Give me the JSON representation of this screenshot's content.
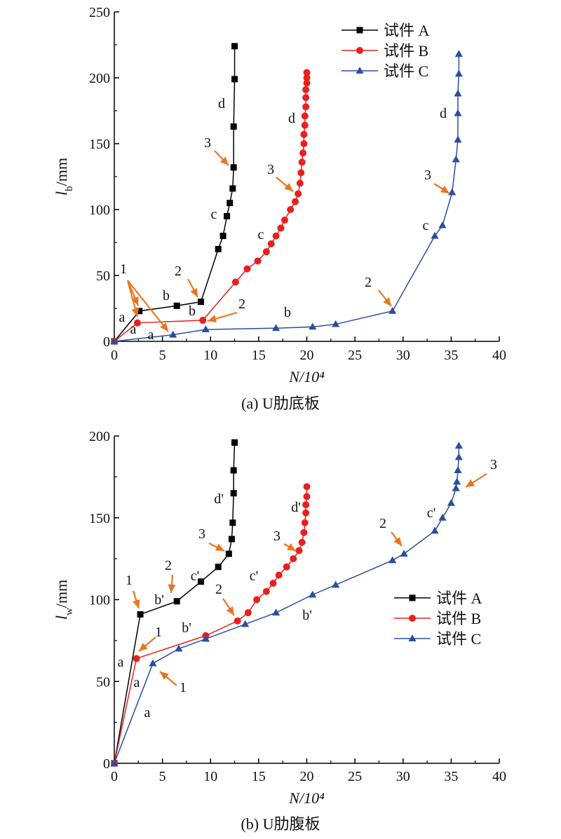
{
  "chart_data": [
    {
      "type": "line",
      "caption": "(a) U肋底板",
      "xlabel": "N/10⁴",
      "ylabel": "lb/mm",
      "xlim": [
        0,
        40
      ],
      "ylim": [
        0,
        250
      ],
      "xticks": [
        0,
        5,
        10,
        15,
        20,
        25,
        30,
        35,
        40
      ],
      "yticks": [
        0,
        50,
        100,
        150,
        200,
        250
      ],
      "legend_position": "top-right",
      "series": [
        {
          "name": "试件 A",
          "color": "#000000",
          "marker": "square",
          "x": [
            0,
            2.6,
            6.5,
            9.0,
            10.8,
            11.3,
            11.7,
            12.0,
            12.3,
            12.4,
            12.4,
            12.5,
            12.5
          ],
          "y": [
            0,
            23,
            27,
            30,
            70,
            80,
            95,
            105,
            116,
            132,
            163,
            199,
            224
          ]
        },
        {
          "name": "试件 B",
          "color": "#e8201f",
          "marker": "circle",
          "x": [
            0,
            2.4,
            9.2,
            12.6,
            13.8,
            14.9,
            15.8,
            16.3,
            16.8,
            17.3,
            17.7,
            18.3,
            18.8,
            19.1,
            19.3,
            19.4,
            19.5,
            19.6,
            19.7,
            19.7,
            19.8,
            19.8,
            19.9,
            19.9,
            19.9,
            20.0,
            20.0,
            20.0
          ],
          "y": [
            0,
            14,
            16,
            45,
            55,
            61,
            68,
            74,
            80,
            86,
            92,
            100,
            106,
            112,
            120,
            128,
            136,
            143,
            150,
            157,
            164,
            171,
            178,
            185,
            191,
            196,
            200,
            204
          ]
        },
        {
          "name": "试件 C",
          "color": "#2a4ea2",
          "marker": "triangle",
          "x": [
            0,
            6.1,
            9.5,
            16.8,
            20.6,
            23.0,
            28.9,
            33.3,
            34.1,
            35.1,
            35.5,
            35.7,
            35.7,
            35.7,
            35.8,
            35.8
          ],
          "y": [
            0,
            5,
            9,
            10,
            11,
            13,
            23,
            80,
            88,
            113,
            138,
            153,
            173,
            188,
            203,
            218
          ]
        }
      ],
      "annotations": [
        {
          "text": "1"
        },
        {
          "text": "a"
        },
        {
          "text": "a"
        },
        {
          "text": "a"
        },
        {
          "text": "b"
        },
        {
          "text": "b"
        },
        {
          "text": "b"
        },
        {
          "text": "2"
        },
        {
          "text": "2"
        },
        {
          "text": "2"
        },
        {
          "text": "c"
        },
        {
          "text": "c"
        },
        {
          "text": "c"
        },
        {
          "text": "3"
        },
        {
          "text": "3"
        },
        {
          "text": "3"
        },
        {
          "text": "d"
        },
        {
          "text": "d"
        },
        {
          "text": "d"
        }
      ]
    },
    {
      "type": "line",
      "caption": "(b) U肋腹板",
      "xlabel": "N/10⁴",
      "ylabel": "lw/mm",
      "xlim": [
        0,
        40
      ],
      "ylim": [
        0,
        200
      ],
      "xticks": [
        0,
        5,
        10,
        15,
        20,
        25,
        30,
        35,
        40
      ],
      "yticks": [
        0,
        50,
        100,
        150,
        200
      ],
      "legend_position": "center-right",
      "series": [
        {
          "name": "试件 A",
          "color": "#000000",
          "marker": "square",
          "x": [
            0,
            2.7,
            6.5,
            9.0,
            10.8,
            11.9,
            12.2,
            12.3,
            12.4,
            12.4,
            12.5,
            12.5
          ],
          "y": [
            0,
            91,
            99,
            111,
            120,
            128,
            137,
            147,
            165,
            179,
            196,
            196
          ]
        },
        {
          "name": "试件 B",
          "color": "#e8201f",
          "marker": "circle",
          "x": [
            0,
            2.3,
            9.5,
            12.8,
            13.9,
            14.8,
            15.8,
            16.5,
            17.1,
            17.9,
            18.6,
            19.2,
            19.5,
            19.7,
            19.8,
            19.9,
            19.9,
            20.0,
            20.0
          ],
          "y": [
            0,
            64,
            78,
            87,
            92,
            100,
            105,
            110,
            115,
            120,
            125,
            130,
            135,
            141,
            147,
            153,
            158,
            163,
            169
          ]
        },
        {
          "name": "试件 C",
          "color": "#2a4ea2",
          "marker": "triangle",
          "x": [
            0,
            4.0,
            6.7,
            9.5,
            13.6,
            16.8,
            20.6,
            23.0,
            28.9,
            30.1,
            33.3,
            34.1,
            35.0,
            35.5,
            35.6,
            35.7,
            35.8,
            35.8
          ],
          "y": [
            0,
            61,
            70,
            76,
            85,
            92,
            103,
            109,
            124,
            128,
            142,
            150,
            159,
            168,
            172,
            179,
            187,
            194
          ]
        }
      ],
      "annotations": [
        {
          "text": "1"
        },
        {
          "text": "1"
        },
        {
          "text": "1"
        },
        {
          "text": "a"
        },
        {
          "text": "a"
        },
        {
          "text": "a"
        },
        {
          "text": "b'"
        },
        {
          "text": "b'"
        },
        {
          "text": "b'"
        },
        {
          "text": "2"
        },
        {
          "text": "2"
        },
        {
          "text": "2"
        },
        {
          "text": "c'"
        },
        {
          "text": "c'"
        },
        {
          "text": "c'"
        },
        {
          "text": "3"
        },
        {
          "text": "3"
        },
        {
          "text": "3"
        },
        {
          "text": "d'"
        },
        {
          "text": "d'"
        }
      ]
    }
  ]
}
